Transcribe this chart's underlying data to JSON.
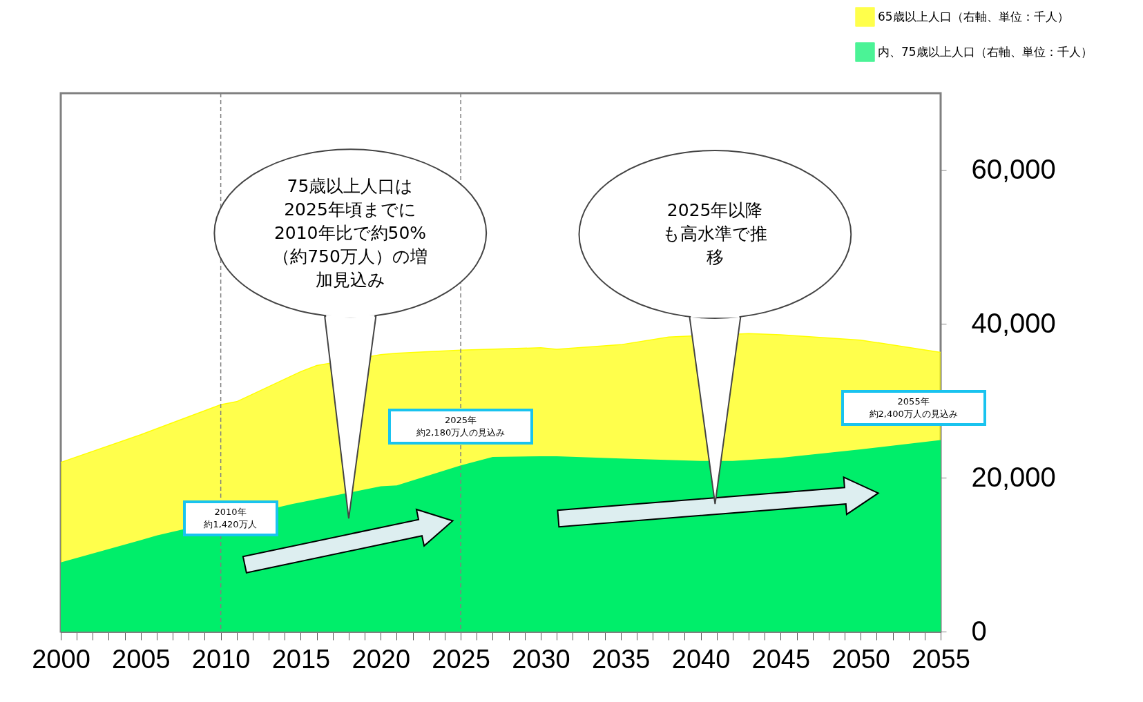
{
  "chart_data": {
    "type": "area",
    "series": [
      {
        "name": "65歳以上人口（右軸、単位：千人）",
        "color": "#ffff00",
        "x": [
          2000,
          2005,
          2010,
          2011,
          2015,
          2016,
          2020,
          2021,
          2025,
          2030,
          2031,
          2035,
          2038,
          2043,
          2045,
          2050,
          2055
        ],
        "values": [
          22000,
          25600,
          29500,
          29900,
          33800,
          34600,
          36000,
          36200,
          36600,
          36900,
          36700,
          37300,
          38300,
          38750,
          38600,
          37900,
          36300
        ]
      },
      {
        "name": "内、75歳以上人口（右軸、単位：千人）",
        "color": "#00ee6a",
        "x": [
          2000,
          2005,
          2006,
          2014.5,
          2015,
          2020,
          2021,
          2025,
          2027,
          2030,
          2031,
          2035,
          2040,
          2042,
          2045,
          2050,
          2055
        ],
        "values": [
          9000,
          11900,
          12500,
          16600,
          16800,
          18900,
          19000,
          21600,
          22700,
          22800,
          22800,
          22500,
          22200,
          22200,
          22600,
          23700,
          24900
        ]
      }
    ],
    "xlim": [
      2000,
      2055
    ],
    "xticks": [
      2000,
      {
        "value": 2001,
        "label": null
      },
      {
        "value": 2002,
        "label": null
      },
      {
        "value": 2003,
        "label": null
      },
      {
        "value": 2004,
        "label": null
      },
      2005,
      {
        "value": 2006,
        "label": null
      },
      {
        "value": 2007,
        "label": null
      },
      {
        "value": 2008,
        "label": null
      },
      {
        "value": 2009,
        "label": null
      },
      2010,
      {
        "value": 2011,
        "label": null
      },
      {
        "value": 2012,
        "label": null
      },
      {
        "value": 2013,
        "label": null
      },
      {
        "value": 2014,
        "label": null
      },
      2015,
      {
        "value": 2016,
        "label": null
      },
      {
        "value": 2017,
        "label": null
      },
      {
        "value": 2018,
        "label": null
      },
      {
        "value": 2019,
        "label": null
      },
      2020,
      {
        "value": 2021,
        "label": null
      },
      {
        "value": 2022,
        "label": null
      },
      {
        "value": 2023,
        "label": null
      },
      {
        "value": 2024,
        "label": null
      },
      2025,
      {
        "value": 2026,
        "label": null
      },
      {
        "value": 2027,
        "label": null
      },
      {
        "value": 2028,
        "label": null
      },
      {
        "value": 2029,
        "label": null
      },
      2030,
      {
        "value": 2031,
        "label": null
      },
      {
        "value": 2032,
        "label": null
      },
      {
        "value": 2033,
        "label": null
      },
      {
        "value": 2034,
        "label": null
      },
      2035,
      {
        "value": 2036,
        "label": null
      },
      {
        "value": 2037,
        "label": null
      },
      {
        "value": 2038,
        "label": null
      },
      {
        "value": 2039,
        "label": null
      },
      2040,
      {
        "value": 2041,
        "label": null
      },
      {
        "value": 2042,
        "label": null
      },
      {
        "value": 2043,
        "label": null
      },
      {
        "value": 2044,
        "label": null
      },
      2045,
      {
        "value": 2046,
        "label": null
      },
      {
        "value": 2047,
        "label": null
      },
      {
        "value": 2048,
        "label": null
      },
      {
        "value": 2049,
        "label": null
      },
      2050,
      {
        "value": 2051,
        "label": null
      },
      {
        "value": 2052,
        "label": null
      },
      {
        "value": 2053,
        "label": null
      },
      {
        "value": 2054,
        "label": null
      },
      2055
    ],
    "ylim": [
      0,
      70000
    ],
    "yticks": [
      {
        "value": 0,
        "label": "0"
      },
      {
        "value": 20000,
        "label": "20,000"
      },
      {
        "value": 40000,
        "label": "40,000"
      },
      {
        "value": 60000,
        "label": "60,000"
      }
    ],
    "grid": false,
    "legend": "top right",
    "ref_lines": [
      {
        "axis": "x",
        "value": 2010,
        "color": "#808080",
        "line_style": "dashed"
      },
      {
        "axis": "x",
        "value": 2025,
        "color": "#808080",
        "line_style": "dashed"
      }
    ],
    "annotations": [
      "75歳以上人口は2025年頃までに2010年比で約50%（約750万人）の増加見込み",
      "2025年以降も高水準で推移",
      "2010年",
      "約1,420万人",
      "2025年",
      "約2,180万人の見込み",
      "2055年",
      "約2,400万人の見込み"
    ]
  }
}
